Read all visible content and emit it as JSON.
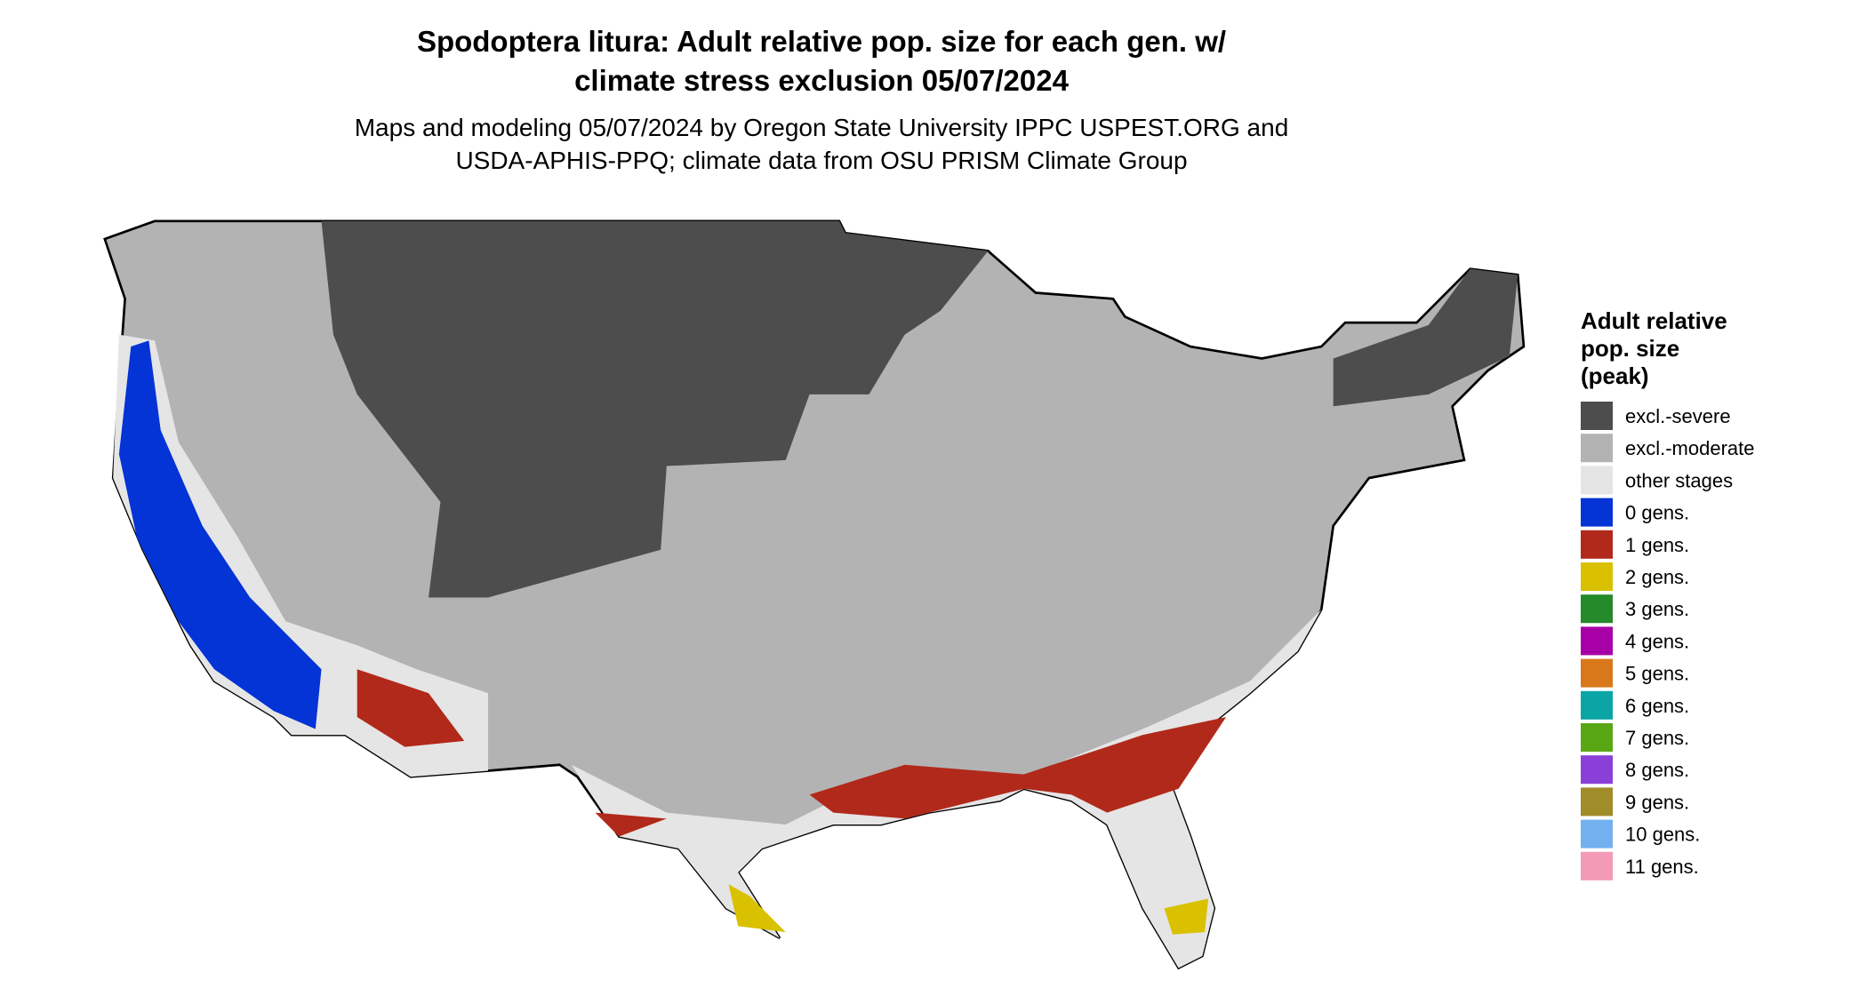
{
  "header": {
    "title": [
      "Spodoptera litura: Adult relative pop. size for each gen. w/",
      "climate stress exclusion 05/07/2024"
    ],
    "subtitle": [
      "Maps and modeling 05/07/2024 by Oregon State University IPPC USPEST.ORG and",
      "USDA-APHIS-PPQ; climate data from OSU PRISM Climate Group"
    ]
  },
  "legend": {
    "title": [
      "Adult relative",
      "pop. size",
      "(peak)"
    ],
    "items": [
      {
        "label": "excl.-severe",
        "color": "#4d4d4d"
      },
      {
        "label": "excl.-moderate",
        "color": "#b3b3b3"
      },
      {
        "label": "other stages",
        "color": "#e5e5e5"
      },
      {
        "label": "0 gens.",
        "color": "#0433d6"
      },
      {
        "label": "1 gens.",
        "color": "#b1291a"
      },
      {
        "label": "2 gens.",
        "color": "#d9c100"
      },
      {
        "label": "3 gens.",
        "color": "#248a2a"
      },
      {
        "label": "4 gens.",
        "color": "#a600a6"
      },
      {
        "label": "5 gens.",
        "color": "#d8781a"
      },
      {
        "label": "6 gens.",
        "color": "#0ba5a5"
      },
      {
        "label": "7 gens.",
        "color": "#5aa716"
      },
      {
        "label": "8 gens.",
        "color": "#8a40d8"
      },
      {
        "label": "9 gens.",
        "color": "#a08c28"
      },
      {
        "label": "10 gens.",
        "color": "#72b0ef"
      },
      {
        "label": "11 gens.",
        "color": "#f29ab6"
      }
    ]
  }
}
